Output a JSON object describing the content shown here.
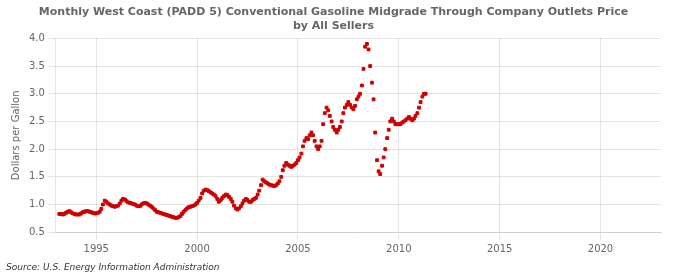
{
  "chart_data": {
    "type": "scatter",
    "title": "Monthly West Coast (PADD 5) Conventional Gasoline Midgrade Through Company Outlets Price\nby All Sellers",
    "ylabel": "Dollars per Gallon",
    "source": "Source: U.S. Energy Information Administration",
    "color": "#cc0000",
    "marker": "square",
    "grid": true,
    "xlim": [
      1993.0,
      2023.0
    ],
    "ylim": [
      0.5,
      4.0
    ],
    "xticks": [
      1995,
      2000,
      2005,
      2010,
      2015,
      2020
    ],
    "yticks": [
      0.5,
      {
        "value": 1.0,
        "label": "1.0"
      },
      1.5,
      {
        "value": 2.0,
        "label": "2.0"
      },
      2.5,
      {
        "value": 3.0,
        "label": "3.0"
      },
      3.5,
      {
        "value": 4.0,
        "label": "4.0"
      }
    ],
    "x": [
      1993.17,
      1993.25,
      1993.33,
      1993.42,
      1993.5,
      1993.58,
      1993.67,
      1993.75,
      1993.83,
      1993.92,
      1994.0,
      1994.08,
      1994.17,
      1994.25,
      1994.33,
      1994.42,
      1994.5,
      1994.58,
      1994.67,
      1994.75,
      1994.83,
      1994.92,
      1995.0,
      1995.08,
      1995.17,
      1995.25,
      1995.33,
      1995.42,
      1995.5,
      1995.58,
      1995.67,
      1995.75,
      1995.83,
      1995.92,
      1996.0,
      1996.08,
      1996.17,
      1996.25,
      1996.33,
      1996.42,
      1996.5,
      1996.58,
      1996.67,
      1996.75,
      1996.83,
      1996.92,
      1997.0,
      1997.08,
      1997.17,
      1997.25,
      1997.33,
      1997.42,
      1997.5,
      1997.58,
      1997.67,
      1997.75,
      1997.83,
      1997.92,
      1998.0,
      1998.08,
      1998.17,
      1998.25,
      1998.33,
      1998.42,
      1998.5,
      1998.58,
      1998.67,
      1998.75,
      1998.83,
      1998.92,
      1999.0,
      1999.08,
      1999.17,
      1999.25,
      1999.33,
      1999.42,
      1999.5,
      1999.58,
      1999.67,
      1999.75,
      1999.83,
      1999.92,
      2000.0,
      2000.08,
      2000.17,
      2000.25,
      2000.33,
      2000.42,
      2000.5,
      2000.58,
      2000.67,
      2000.75,
      2000.83,
      2000.92,
      2001.0,
      2001.08,
      2001.17,
      2001.25,
      2001.33,
      2001.42,
      2001.5,
      2001.58,
      2001.67,
      2001.75,
      2001.83,
      2001.92,
      2002.0,
      2002.08,
      2002.17,
      2002.25,
      2002.33,
      2002.42,
      2002.5,
      2002.58,
      2002.67,
      2002.75,
      2002.83,
      2002.92,
      2003.0,
      2003.08,
      2003.17,
      2003.25,
      2003.33,
      2003.42,
      2003.5,
      2003.58,
      2003.67,
      2003.75,
      2003.83,
      2003.92,
      2004.0,
      2004.08,
      2004.17,
      2004.25,
      2004.33,
      2004.42,
      2004.5,
      2004.58,
      2004.67,
      2004.75,
      2004.83,
      2004.92,
      2005.0,
      2005.08,
      2005.17,
      2005.25,
      2005.33,
      2005.42,
      2005.5,
      2005.58,
      2005.67,
      2005.75,
      2005.83,
      2005.92,
      2006.0,
      2006.08,
      2006.17,
      2006.25,
      2006.33,
      2006.42,
      2006.5,
      2006.58,
      2006.67,
      2006.75,
      2006.83,
      2006.92,
      2007.0,
      2007.08,
      2007.17,
      2007.25,
      2007.33,
      2007.42,
      2007.5,
      2007.58,
      2007.67,
      2007.75,
      2007.83,
      2007.92,
      2008.0,
      2008.08,
      2008.17,
      2008.25,
      2008.33,
      2008.42,
      2008.5,
      2008.58,
      2008.67,
      2008.75,
      2008.83,
      2008.92,
      2009.0,
      2009.08,
      2009.17,
      2009.25,
      2009.33,
      2009.42,
      2009.5,
      2009.58,
      2009.67,
      2009.75,
      2009.83,
      2009.92,
      2010.0,
      2010.08,
      2010.17,
      2010.25,
      2010.33,
      2010.42,
      2010.5,
      2010.58,
      2010.67,
      2010.75,
      2010.83,
      2010.92,
      2011.0,
      2011.08,
      2011.17,
      2011.25,
      2011.33
    ],
    "values": [
      0.83,
      0.83,
      0.82,
      0.83,
      0.85,
      0.87,
      0.88,
      0.86,
      0.84,
      0.83,
      0.82,
      0.82,
      0.82,
      0.84,
      0.86,
      0.87,
      0.88,
      0.88,
      0.87,
      0.86,
      0.85,
      0.84,
      0.84,
      0.85,
      0.87,
      0.92,
      1.0,
      1.07,
      1.05,
      1.02,
      1.0,
      0.98,
      0.97,
      0.96,
      0.97,
      0.98,
      1.02,
      1.07,
      1.1,
      1.09,
      1.06,
      1.04,
      1.03,
      1.02,
      1.01,
      1.0,
      0.98,
      0.97,
      0.97,
      1.0,
      1.02,
      1.03,
      1.02,
      1.0,
      0.98,
      0.96,
      0.93,
      0.9,
      0.87,
      0.86,
      0.85,
      0.84,
      0.83,
      0.82,
      0.81,
      0.8,
      0.79,
      0.78,
      0.77,
      0.76,
      0.76,
      0.77,
      0.79,
      0.83,
      0.87,
      0.9,
      0.93,
      0.95,
      0.96,
      0.97,
      0.98,
      1.0,
      1.03,
      1.07,
      1.12,
      1.2,
      1.25,
      1.27,
      1.26,
      1.24,
      1.22,
      1.2,
      1.18,
      1.15,
      1.1,
      1.05,
      1.08,
      1.12,
      1.15,
      1.18,
      1.17,
      1.14,
      1.1,
      1.05,
      0.98,
      0.93,
      0.91,
      0.93,
      0.97,
      1.02,
      1.07,
      1.1,
      1.08,
      1.05,
      1.05,
      1.08,
      1.1,
      1.12,
      1.18,
      1.25,
      1.35,
      1.45,
      1.42,
      1.4,
      1.38,
      1.36,
      1.35,
      1.34,
      1.33,
      1.35,
      1.38,
      1.42,
      1.5,
      1.62,
      1.7,
      1.75,
      1.72,
      1.7,
      1.68,
      1.7,
      1.72,
      1.75,
      1.8,
      1.85,
      1.92,
      2.05,
      2.15,
      2.2,
      2.18,
      2.25,
      2.3,
      2.25,
      2.15,
      2.05,
      2.0,
      2.05,
      2.15,
      2.45,
      2.65,
      2.75,
      2.7,
      2.6,
      2.5,
      2.4,
      2.35,
      2.3,
      2.35,
      2.4,
      2.5,
      2.65,
      2.75,
      2.8,
      2.85,
      2.8,
      2.75,
      2.72,
      2.78,
      2.9,
      2.95,
      3.0,
      3.15,
      3.45,
      3.85,
      3.9,
      3.8,
      3.5,
      3.2,
      2.9,
      2.3,
      1.8,
      1.6,
      1.55,
      1.7,
      1.85,
      2.0,
      2.2,
      2.35,
      2.5,
      2.55,
      2.5,
      2.45,
      2.45,
      2.45,
      2.45,
      2.48,
      2.5,
      2.52,
      2.55,
      2.58,
      2.55,
      2.52,
      2.55,
      2.6,
      2.65,
      2.75,
      2.85,
      2.95,
      3.0,
      3.0
    ]
  }
}
